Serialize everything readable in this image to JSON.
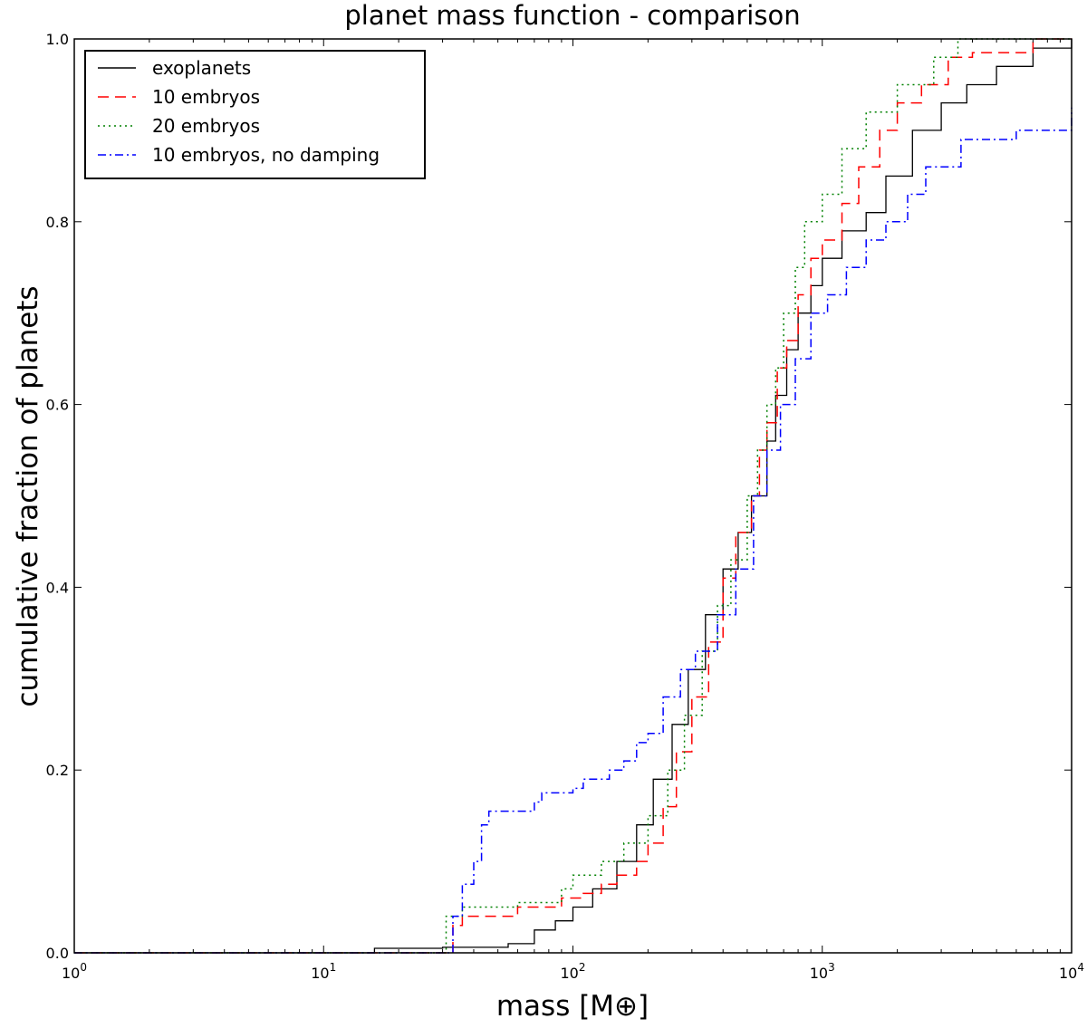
{
  "chart_data": {
    "type": "line",
    "title": "planet mass function - comparison",
    "xlabel": "mass [M⊕]",
    "ylabel": "cumulative fraction of planets",
    "xscale": "log",
    "xlim": [
      1,
      10000
    ],
    "ylim": [
      0,
      1
    ],
    "x_ticks": [
      {
        "value": 1,
        "base": "10",
        "exp": "0"
      },
      {
        "value": 10,
        "base": "10",
        "exp": "1"
      },
      {
        "value": 100,
        "base": "10",
        "exp": "2"
      },
      {
        "value": 1000,
        "base": "10",
        "exp": "3"
      },
      {
        "value": 10000,
        "base": "10",
        "exp": "4"
      }
    ],
    "y_ticks": [
      {
        "value": 0,
        "label": "0.0"
      },
      {
        "value": 0.2,
        "label": "0.2"
      },
      {
        "value": 0.4,
        "label": "0.4"
      },
      {
        "value": 0.6,
        "label": "0.6"
      },
      {
        "value": 0.8,
        "label": "0.8"
      },
      {
        "value": 1.0,
        "label": "1.0"
      }
    ],
    "grid": false,
    "legend_position": "top-left",
    "series": [
      {
        "name": "exoplanets",
        "color": "#000000",
        "dash": "solid",
        "points": [
          [
            1,
            0
          ],
          [
            6,
            0
          ],
          [
            16,
            0.005
          ],
          [
            30,
            0.006
          ],
          [
            55,
            0.01
          ],
          [
            70,
            0.025
          ],
          [
            85,
            0.035
          ],
          [
            100,
            0.05
          ],
          [
            120,
            0.07
          ],
          [
            150,
            0.1
          ],
          [
            180,
            0.14
          ],
          [
            210,
            0.19
          ],
          [
            250,
            0.25
          ],
          [
            290,
            0.31
          ],
          [
            340,
            0.37
          ],
          [
            400,
            0.42
          ],
          [
            460,
            0.46
          ],
          [
            520,
            0.5
          ],
          [
            600,
            0.56
          ],
          [
            650,
            0.61
          ],
          [
            720,
            0.66
          ],
          [
            800,
            0.7
          ],
          [
            900,
            0.73
          ],
          [
            1000,
            0.76
          ],
          [
            1200,
            0.79
          ],
          [
            1500,
            0.81
          ],
          [
            1800,
            0.85
          ],
          [
            2300,
            0.9
          ],
          [
            3000,
            0.93
          ],
          [
            3800,
            0.95
          ],
          [
            5000,
            0.97
          ],
          [
            7000,
            0.99
          ],
          [
            10000,
            1.0
          ]
        ]
      },
      {
        "name": "10 embryos",
        "color": "#ff0000",
        "dash": "dashed",
        "points": [
          [
            1,
            0
          ],
          [
            30,
            0
          ],
          [
            33,
            0.03
          ],
          [
            36,
            0.04
          ],
          [
            55,
            0.04
          ],
          [
            60,
            0.05
          ],
          [
            80,
            0.05
          ],
          [
            90,
            0.06
          ],
          [
            110,
            0.065
          ],
          [
            130,
            0.075
          ],
          [
            150,
            0.085
          ],
          [
            180,
            0.1
          ],
          [
            200,
            0.12
          ],
          [
            230,
            0.16
          ],
          [
            260,
            0.22
          ],
          [
            300,
            0.28
          ],
          [
            350,
            0.34
          ],
          [
            400,
            0.41
          ],
          [
            450,
            0.46
          ],
          [
            520,
            0.5
          ],
          [
            560,
            0.55
          ],
          [
            600,
            0.58
          ],
          [
            660,
            0.64
          ],
          [
            720,
            0.67
          ],
          [
            800,
            0.72
          ],
          [
            900,
            0.76
          ],
          [
            1000,
            0.78
          ],
          [
            1200,
            0.82
          ],
          [
            1400,
            0.86
          ],
          [
            1700,
            0.9
          ],
          [
            2000,
            0.93
          ],
          [
            2500,
            0.95
          ],
          [
            3200,
            0.98
          ],
          [
            4000,
            0.985
          ],
          [
            5500,
            0.985
          ],
          [
            7000,
            1.0
          ],
          [
            10000,
            1.0
          ]
        ]
      },
      {
        "name": "20 embryos",
        "color": "#008000",
        "dash": "dotted",
        "points": [
          [
            1,
            0
          ],
          [
            28,
            0
          ],
          [
            31,
            0.04
          ],
          [
            36,
            0.05
          ],
          [
            60,
            0.055
          ],
          [
            90,
            0.07
          ],
          [
            100,
            0.085
          ],
          [
            130,
            0.1
          ],
          [
            160,
            0.12
          ],
          [
            200,
            0.15
          ],
          [
            240,
            0.2
          ],
          [
            280,
            0.26
          ],
          [
            330,
            0.33
          ],
          [
            380,
            0.38
          ],
          [
            430,
            0.43
          ],
          [
            500,
            0.5
          ],
          [
            550,
            0.55
          ],
          [
            600,
            0.6
          ],
          [
            650,
            0.64
          ],
          [
            700,
            0.7
          ],
          [
            780,
            0.75
          ],
          [
            850,
            0.8
          ],
          [
            1000,
            0.83
          ],
          [
            1200,
            0.88
          ],
          [
            1500,
            0.92
          ],
          [
            2000,
            0.95
          ],
          [
            2800,
            0.98
          ],
          [
            3500,
            1.0
          ],
          [
            10000,
            1.0
          ]
        ]
      },
      {
        "name": "10 embryos, no damping",
        "color": "#0000ff",
        "dash": "dashdot",
        "points": [
          [
            1,
            0
          ],
          [
            30,
            0
          ],
          [
            33,
            0.04
          ],
          [
            36,
            0.075
          ],
          [
            40,
            0.1
          ],
          [
            43,
            0.14
          ],
          [
            46,
            0.155
          ],
          [
            70,
            0.165
          ],
          [
            75,
            0.175
          ],
          [
            100,
            0.18
          ],
          [
            110,
            0.19
          ],
          [
            140,
            0.2
          ],
          [
            160,
            0.21
          ],
          [
            180,
            0.23
          ],
          [
            200,
            0.24
          ],
          [
            230,
            0.28
          ],
          [
            270,
            0.31
          ],
          [
            310,
            0.33
          ],
          [
            380,
            0.37
          ],
          [
            450,
            0.42
          ],
          [
            530,
            0.5
          ],
          [
            600,
            0.55
          ],
          [
            680,
            0.6
          ],
          [
            780,
            0.65
          ],
          [
            900,
            0.7
          ],
          [
            1050,
            0.72
          ],
          [
            1250,
            0.75
          ],
          [
            1500,
            0.78
          ],
          [
            1800,
            0.8
          ],
          [
            2200,
            0.83
          ],
          [
            2600,
            0.86
          ],
          [
            3200,
            0.86
          ],
          [
            3600,
            0.89
          ],
          [
            5000,
            0.89
          ],
          [
            6000,
            0.9
          ],
          [
            8000,
            0.9
          ],
          [
            10000,
            0.925
          ]
        ]
      }
    ]
  }
}
